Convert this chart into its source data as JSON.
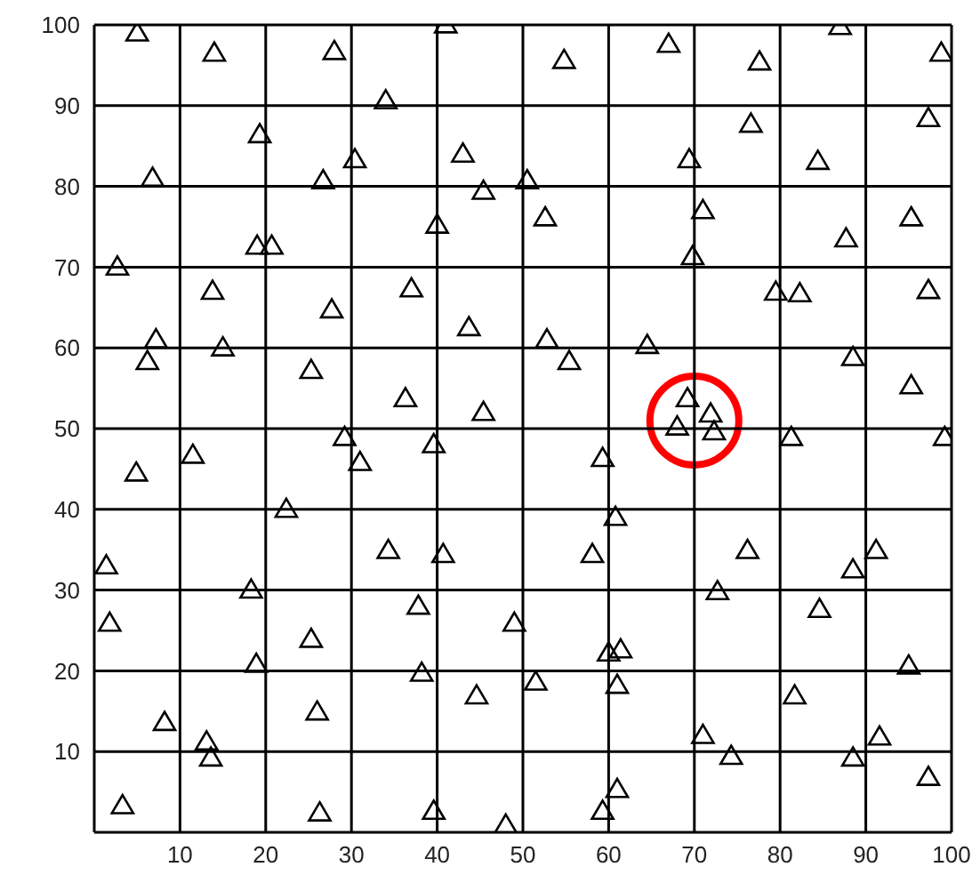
{
  "chart_data": {
    "type": "scatter",
    "marker": "triangle",
    "grid": true,
    "xlim": [
      0,
      100
    ],
    "ylim": [
      0,
      100
    ],
    "xticks": [
      10,
      20,
      30,
      40,
      50,
      60,
      70,
      80,
      90,
      100
    ],
    "yticks": [
      10,
      20,
      30,
      40,
      50,
      60,
      70,
      80,
      90,
      100
    ],
    "series": [
      {
        "color": "#000000",
        "x": [
          5,
          14,
          28,
          34,
          41,
          19.3,
          6.8,
          26.7,
          30.4,
          43,
          45.4,
          40,
          2.7,
          19,
          20.7,
          13.8,
          27.7,
          37,
          43.7,
          7.2,
          6.2,
          15,
          25.3,
          36.3,
          45.4,
          4.9,
          11.5,
          29.2,
          31,
          39.6,
          22.4,
          1.4,
          34.3,
          40.7,
          18.3,
          37.8,
          1.8,
          25.3,
          18.9,
          38.2,
          26,
          44.6,
          8.2,
          13.1,
          13.6,
          3.3,
          26.3,
          39.6,
          48,
          49,
          59.3,
          60.8,
          58.1,
          76.2,
          91.2,
          88.5,
          72.7,
          84.6,
          60,
          61.4,
          51.5,
          61,
          81.7,
          95,
          71,
          74.3,
          88.5,
          91.6,
          97.3,
          61,
          59.3,
          81.3,
          99.2,
          54.8,
          67,
          77.6,
          87,
          98.8,
          76.6,
          97.3,
          69.4,
          84.4,
          50.5,
          52.6,
          71,
          95.3,
          87.7,
          69.8,
          79.5,
          82.3,
          97.3,
          52.8,
          55.4,
          64.5,
          88.5,
          95.3,
          69.2,
          71.9,
          68,
          72.3
        ],
        "values": [
          99,
          96.5,
          96.7,
          90.6,
          100,
          86.4,
          81,
          80.7,
          83.3,
          84,
          79.4,
          75.2,
          70,
          72.6,
          72.6,
          67,
          64.7,
          67.3,
          62.5,
          61,
          58.3,
          60,
          57.2,
          53.7,
          52,
          44.5,
          46.7,
          48.9,
          45.8,
          48,
          40,
          33,
          34.9,
          34.4,
          30,
          28,
          25.9,
          23.9,
          20.8,
          19.7,
          14.9,
          16.9,
          13.6,
          11.2,
          9.2,
          3.3,
          2.4,
          2.6,
          0.9,
          25.9,
          46.3,
          39,
          34.4,
          34.9,
          34.9,
          32.5,
          29.8,
          27.6,
          22.2,
          22.6,
          18.6,
          18.2,
          16.9,
          20.6,
          12,
          9.4,
          9.2,
          11.8,
          6.8,
          5.3,
          2.6,
          48.9,
          48.9,
          95.6,
          97.6,
          95.4,
          99.8,
          96.5,
          87.7,
          88.4,
          83.3,
          83.1,
          80.7,
          76.1,
          77,
          76.1,
          73.5,
          71.3,
          66.9,
          66.7,
          67.1,
          61,
          58.3,
          60.3,
          58.8,
          55.3,
          53.7,
          51.8,
          50.2,
          49.6
        ]
      }
    ]
  }
}
